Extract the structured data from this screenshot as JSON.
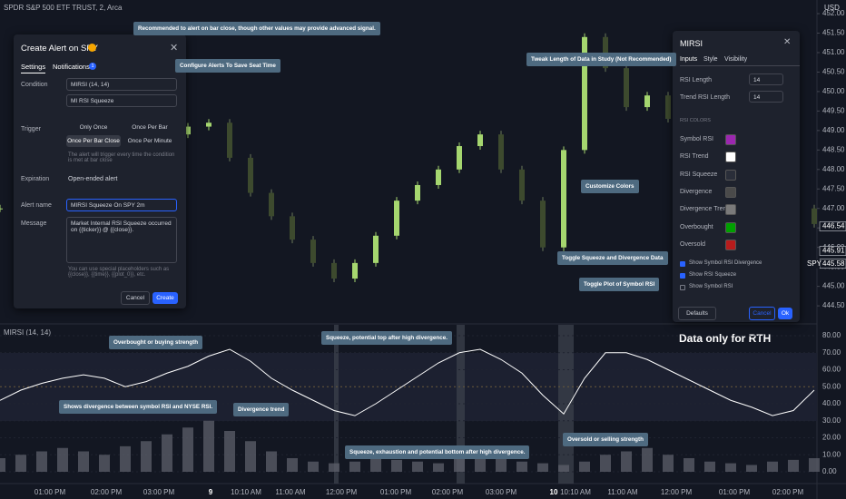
{
  "header": {
    "symbol_title": "SPDR S&P 500 ETF TRUST, 2, Arca",
    "currency": "USD"
  },
  "price_pane": {
    "ylim": [
      444.06,
      452.35
    ],
    "yticks": [
      {
        "value": 452,
        "label": "452.00"
      },
      {
        "value": 451.5,
        "label": "451.50"
      },
      {
        "value": 451,
        "label": "451.00"
      },
      {
        "value": 450.5,
        "label": "450.50"
      },
      {
        "value": 450,
        "label": "450.00"
      },
      {
        "value": 449.5,
        "label": "449.50"
      },
      {
        "value": 449,
        "label": "449.00"
      },
      {
        "value": 448.5,
        "label": "448.50"
      },
      {
        "value": 448,
        "label": "448.00"
      },
      {
        "value": 447.5,
        "label": "447.50"
      },
      {
        "value": 447,
        "label": "447.00"
      },
      {
        "value": 446.5,
        "label": "446.50"
      },
      {
        "value": 446,
        "label": "446.00"
      },
      {
        "value": 445.5,
        "label": "445.50"
      },
      {
        "value": 445,
        "label": "445.00"
      },
      {
        "value": 444.5,
        "label": "444.50"
      }
    ],
    "values": [
      447.0,
      447.8,
      448.2,
      448.5,
      448.9,
      448.6,
      449.0,
      448.7,
      448.9,
      449.1,
      449.2,
      448.3,
      447.4,
      446.8,
      446.2,
      445.6,
      445.2,
      445.6,
      446.3,
      447.2,
      447.6,
      448.0,
      448.6,
      448.9,
      448.0,
      447.2,
      446.0,
      448.5,
      451.4,
      450.6,
      449.6,
      449.9,
      449.3,
      448.8,
      448.3,
      448.0,
      447.6,
      447.3,
      447.0,
      446.6
    ],
    "price_labels": [
      {
        "value": 446.54,
        "label": "446.54"
      },
      {
        "value": 445.91,
        "label": "445.91"
      },
      {
        "value": 445.58,
        "label": "445.58"
      }
    ],
    "symbol_tag": "SPY"
  },
  "rsi_pane": {
    "title": "MIRSI (14, 14)",
    "ylim": [
      -6.4,
      86.4
    ],
    "yticks": [
      {
        "value": 80,
        "label": "80.00"
      },
      {
        "value": 70,
        "label": "70.00"
      },
      {
        "value": 60,
        "label": "60.00"
      },
      {
        "value": 50,
        "label": "50.00"
      },
      {
        "value": 40,
        "label": "40.00"
      },
      {
        "value": 30,
        "label": "30.00"
      },
      {
        "value": 20,
        "label": "20.00"
      },
      {
        "value": 10,
        "label": "10.00"
      },
      {
        "value": 0,
        "label": "0.00"
      }
    ],
    "rsi_trend": [
      42,
      48,
      52,
      55,
      57,
      55,
      50,
      53,
      58,
      62,
      68,
      72,
      65,
      55,
      48,
      42,
      36,
      33,
      40,
      48,
      56,
      64,
      70,
      72,
      66,
      58,
      45,
      34,
      55,
      70,
      70,
      66,
      60,
      54,
      48,
      42,
      38,
      33,
      36,
      48
    ],
    "divergence": [
      8,
      10,
      12,
      14,
      12,
      10,
      15,
      18,
      22,
      26,
      30,
      24,
      18,
      12,
      8,
      6,
      5,
      6,
      8,
      7,
      6,
      5,
      10,
      12,
      8,
      6,
      5,
      4,
      6,
      10,
      12,
      14,
      10,
      8,
      6,
      5,
      4,
      6,
      7,
      8
    ],
    "note": "Data only for RTH"
  },
  "time_axis": {
    "labels": [
      "01:00 PM",
      "02:00 PM",
      "03:00 PM",
      "9",
      "10:10 AM",
      "11:00 AM",
      "12:00 PM",
      "01:00 PM",
      "02:00 PM",
      "03:00 PM",
      "10",
      "10:10 AM",
      "11:00 AM",
      "12:00 PM",
      "01:00 PM",
      "02:00 PM"
    ]
  },
  "alert_dialog": {
    "title": "Create Alert on SPY",
    "tabs": [
      "Settings",
      "Notifications"
    ],
    "badge": "1",
    "condition_label": "Condition",
    "condition": [
      "MIRSI (14, 14)",
      "MI RSI Squeeze"
    ],
    "trigger_label": "Trigger",
    "trigger_options": [
      "Only Once",
      "Once Per Bar",
      "Once Per Bar Close",
      "Once Per Minute"
    ],
    "trigger_note": "The alert will trigger every time the condition is met at bar close",
    "expiration_label": "Expiration",
    "expiration": "Open-ended alert",
    "name_label": "Alert name",
    "name": "MIRSI Squeeze On SPY 2m",
    "message_label": "Message",
    "message": "Market Internal RSI Squeeze occurred on {{ticker}} @ {{close}}.",
    "placeholder_note": "You can use special placeholders such as {{close}}, {{time}}, {{plot_0}}, etc.",
    "buttons": [
      "Cancel",
      "Create"
    ]
  },
  "settings_dialog": {
    "title": "MIRSI",
    "tabs": [
      "Inputs",
      "Style",
      "Visibility"
    ],
    "inputs": [
      {
        "label": "RSI Length",
        "value": "14"
      },
      {
        "label": "Trend RSI Length",
        "value": "14"
      }
    ],
    "colors_heading": "RSI COLORS",
    "colors": [
      {
        "label": "Symbol RSI",
        "color": "#9c27b0"
      },
      {
        "label": "RSI Trend",
        "color": "#ffffff"
      },
      {
        "label": "RSI Squeeze",
        "color": "#2a2e39"
      },
      {
        "label": "Divergence",
        "color": "#4a4a4a"
      },
      {
        "label": "Divergence Trend",
        "color": "#7a7a7a"
      },
      {
        "label": "Overbought",
        "color": "#00a000"
      },
      {
        "label": "Oversold",
        "color": "#b71c1c"
      }
    ],
    "checkboxes": [
      {
        "label": "Show Symbol RSI Divergence",
        "checked": true
      },
      {
        "label": "Show RSI Squeeze",
        "checked": true
      },
      {
        "label": "Show Symbol RSI",
        "checked": false
      }
    ],
    "buttons": [
      "Defaults",
      "Cancel",
      "Ok"
    ]
  },
  "callouts": [
    "Recommended to alert on bar close, though other values may provide advanced signal.",
    "Configure Alerts To Save Seat Time",
    "Tweak Length of Data in Study (Not Recommended)",
    "Customize Colors",
    "Toggle Squeeze and Divergence Data",
    "Toggle Plot of Symbol RSI",
    "Overbought or buying strength",
    "Squeeze, potential top after high divergence.",
    "Shows divergence between symbol RSI and NYSE RSI.",
    "Divergence trend",
    "Squeeze, exhaustion and potential bottom after high divergence.",
    "Oversold or selling strength"
  ]
}
